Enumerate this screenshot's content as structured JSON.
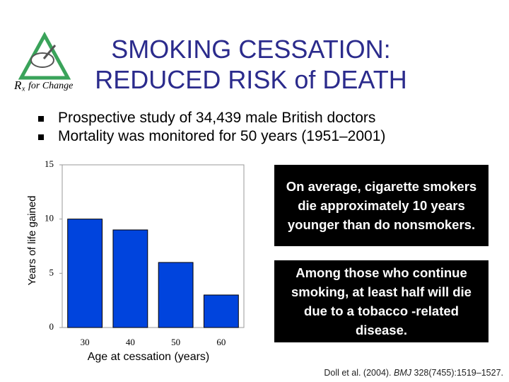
{
  "title_lines": [
    "SMOKING CESSATION:",
    "REDUCED RISK of DEATH"
  ],
  "logo": {
    "r": "R",
    "x": "x",
    "text": "for Change"
  },
  "bullets": [
    "Prospective study of 34,439 male British doctors",
    "Mortality was monitored for 50 years (1951–2001)"
  ],
  "callouts": [
    "On average, cigarette smokers die approximately 10 years younger than do nonsmokers.",
    "Among those who continue smoking, at least half will die due to a tobacco -related disease."
  ],
  "citation": {
    "before": "Doll et al. (2004). ",
    "journal": "BMJ",
    "after": " 328(7455):1519–1527."
  },
  "chart_data": {
    "type": "bar",
    "x_label": "Age at cessation (years)",
    "y_label": "Years of life gained",
    "categories": [
      "30",
      "40",
      "50",
      "60"
    ],
    "values": [
      10,
      9,
      6,
      3
    ],
    "color": "#0044dd",
    "ylim": [
      0,
      15
    ],
    "yticks": [
      0,
      5,
      10,
      15
    ]
  }
}
